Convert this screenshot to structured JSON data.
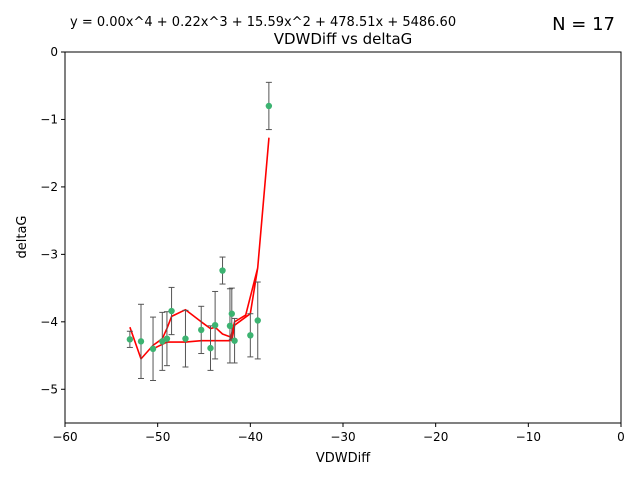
{
  "chart_data": {
    "type": "scatter",
    "title": "VDWDiff vs deltaG",
    "xlabel": "VDWDiff",
    "ylabel": "deltaG",
    "equation": "y = 0.00x^4 + 0.22x^3 + 15.59x^2 + 478.51x + 5486.60",
    "count_label": "N = 17",
    "xlim": [
      -60,
      0
    ],
    "ylim": [
      -5.5,
      0
    ],
    "x_ticks": [
      -60,
      -50,
      -40,
      -30,
      -20,
      -10,
      0
    ],
    "y_ticks": [
      -5,
      -4,
      -3,
      -2,
      -1,
      0
    ],
    "grid": false,
    "point_color": "#3cb371",
    "errorbar_color": "#555555",
    "fit_color": "#ff0000",
    "points": [
      {
        "x": -53.0,
        "y": -4.26,
        "err": 0.12
      },
      {
        "x": -51.8,
        "y": -4.29,
        "err": 0.55
      },
      {
        "x": -50.5,
        "y": -4.4,
        "err": 0.47
      },
      {
        "x": -49.5,
        "y": -4.29,
        "err": 0.43
      },
      {
        "x": -49.0,
        "y": -4.25,
        "err": 0.4
      },
      {
        "x": -48.5,
        "y": -3.84,
        "err": 0.35
      },
      {
        "x": -47.0,
        "y": -4.25,
        "err": 0.42
      },
      {
        "x": -45.3,
        "y": -4.12,
        "err": 0.35
      },
      {
        "x": -44.3,
        "y": -4.39,
        "err": 0.33
      },
      {
        "x": -43.8,
        "y": -4.05,
        "err": 0.5
      },
      {
        "x": -43.0,
        "y": -3.24,
        "err": 0.2
      },
      {
        "x": -42.2,
        "y": -4.06,
        "err": 0.55
      },
      {
        "x": -42.0,
        "y": -3.88,
        "err": 0.38
      },
      {
        "x": -41.7,
        "y": -4.28,
        "err": 0.33
      },
      {
        "x": -40.0,
        "y": -4.2,
        "err": 0.32
      },
      {
        "x": -39.2,
        "y": -3.98,
        "err": 0.57
      },
      {
        "x": -38.0,
        "y": -0.8,
        "err": 0.35
      }
    ],
    "fit_line": {
      "x": [
        -53.0,
        -51.8,
        -50.5,
        -49.5,
        -49.0,
        -48.5,
        -47.0,
        -45.3,
        -44.3,
        -43.8,
        -43.0,
        -42.2,
        -42.0,
        -41.7,
        -40.0,
        -39.2,
        -38.0,
        -39.2,
        -40.5,
        -41.7,
        -42.2,
        -43.8,
        -45.3,
        -47.0,
        -49.0,
        -50.5
      ],
      "y": [
        -4.08,
        -4.55,
        -4.35,
        -4.25,
        -4.1,
        -3.92,
        -3.82,
        -4.0,
        -4.1,
        -4.08,
        -4.18,
        -4.22,
        -4.28,
        -4.05,
        -3.88,
        -3.2,
        -1.28,
        -3.2,
        -3.9,
        -4.0,
        -4.28,
        -4.28,
        -4.28,
        -4.3,
        -4.3,
        -4.4
      ]
    }
  }
}
